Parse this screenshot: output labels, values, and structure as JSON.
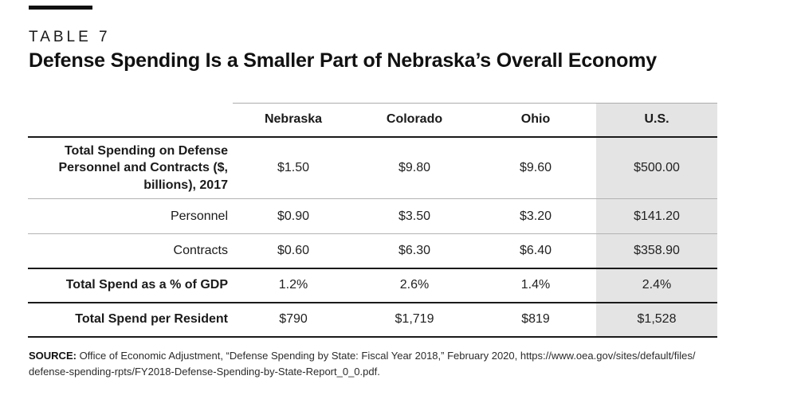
{
  "page": {
    "kicker": "TABLE 7",
    "title": "Defense Spending Is a Smaller Part of Nebraska’s Overall Economy"
  },
  "table": {
    "highlight_color": "#e4e4e4",
    "columns": [
      "Nebraska",
      "Colorado",
      "Ohio",
      "U.S."
    ],
    "rows": [
      {
        "label": "Total Spending on Defense Personnel and Contracts ($, billions), 2017",
        "values": [
          "$1.50",
          "$9.80",
          "$9.60",
          "$500.00"
        ]
      },
      {
        "label": "Personnel",
        "values": [
          "$0.90",
          "$3.50",
          "$3.20",
          "$141.20"
        ]
      },
      {
        "label": "Contracts",
        "values": [
          "$0.60",
          "$6.30",
          "$6.40",
          "$358.90"
        ]
      },
      {
        "label": "Total Spend as a % of GDP",
        "values": [
          "1.2%",
          "2.6%",
          "1.4%",
          "2.4%"
        ]
      },
      {
        "label": "Total Spend per Resident",
        "values": [
          "$790",
          "$1,719",
          "$819",
          "$1,528"
        ]
      }
    ]
  },
  "source": {
    "prefix": "SOURCE:",
    "line1": " Office of Economic Adjustment, “Defense Spending by State: Fiscal Year 2018,” February 2020, https://www.oea.gov/sites/default/files/",
    "line2": "defense-spending-rpts/FY2018-Defense-Spending-by-State-Report_0_0.pdf."
  },
  "chart_data": {
    "type": "table",
    "title": "Defense Spending Is a Smaller Part of Nebraska’s Overall Economy",
    "categories": [
      "Nebraska",
      "Colorado",
      "Ohio",
      "U.S."
    ],
    "series": [
      {
        "name": "Total Spending on Defense Personnel and Contracts ($, billions), 2017",
        "values": [
          1.5,
          9.8,
          9.6,
          500.0
        ],
        "unit": "$B"
      },
      {
        "name": "Personnel ($, billions)",
        "values": [
          0.9,
          3.5,
          3.2,
          141.2
        ],
        "unit": "$B"
      },
      {
        "name": "Contracts ($, billions)",
        "values": [
          0.6,
          6.3,
          6.4,
          358.9
        ],
        "unit": "$B"
      },
      {
        "name": "Total Spend as a % of GDP",
        "values": [
          1.2,
          2.6,
          1.4,
          2.4
        ],
        "unit": "%"
      },
      {
        "name": "Total Spend per Resident",
        "values": [
          790,
          1719,
          819,
          1528
        ],
        "unit": "$"
      }
    ],
    "layout_hints": {
      "highlighted_column": "U.S.",
      "grid": "horizontal-rules"
    }
  }
}
